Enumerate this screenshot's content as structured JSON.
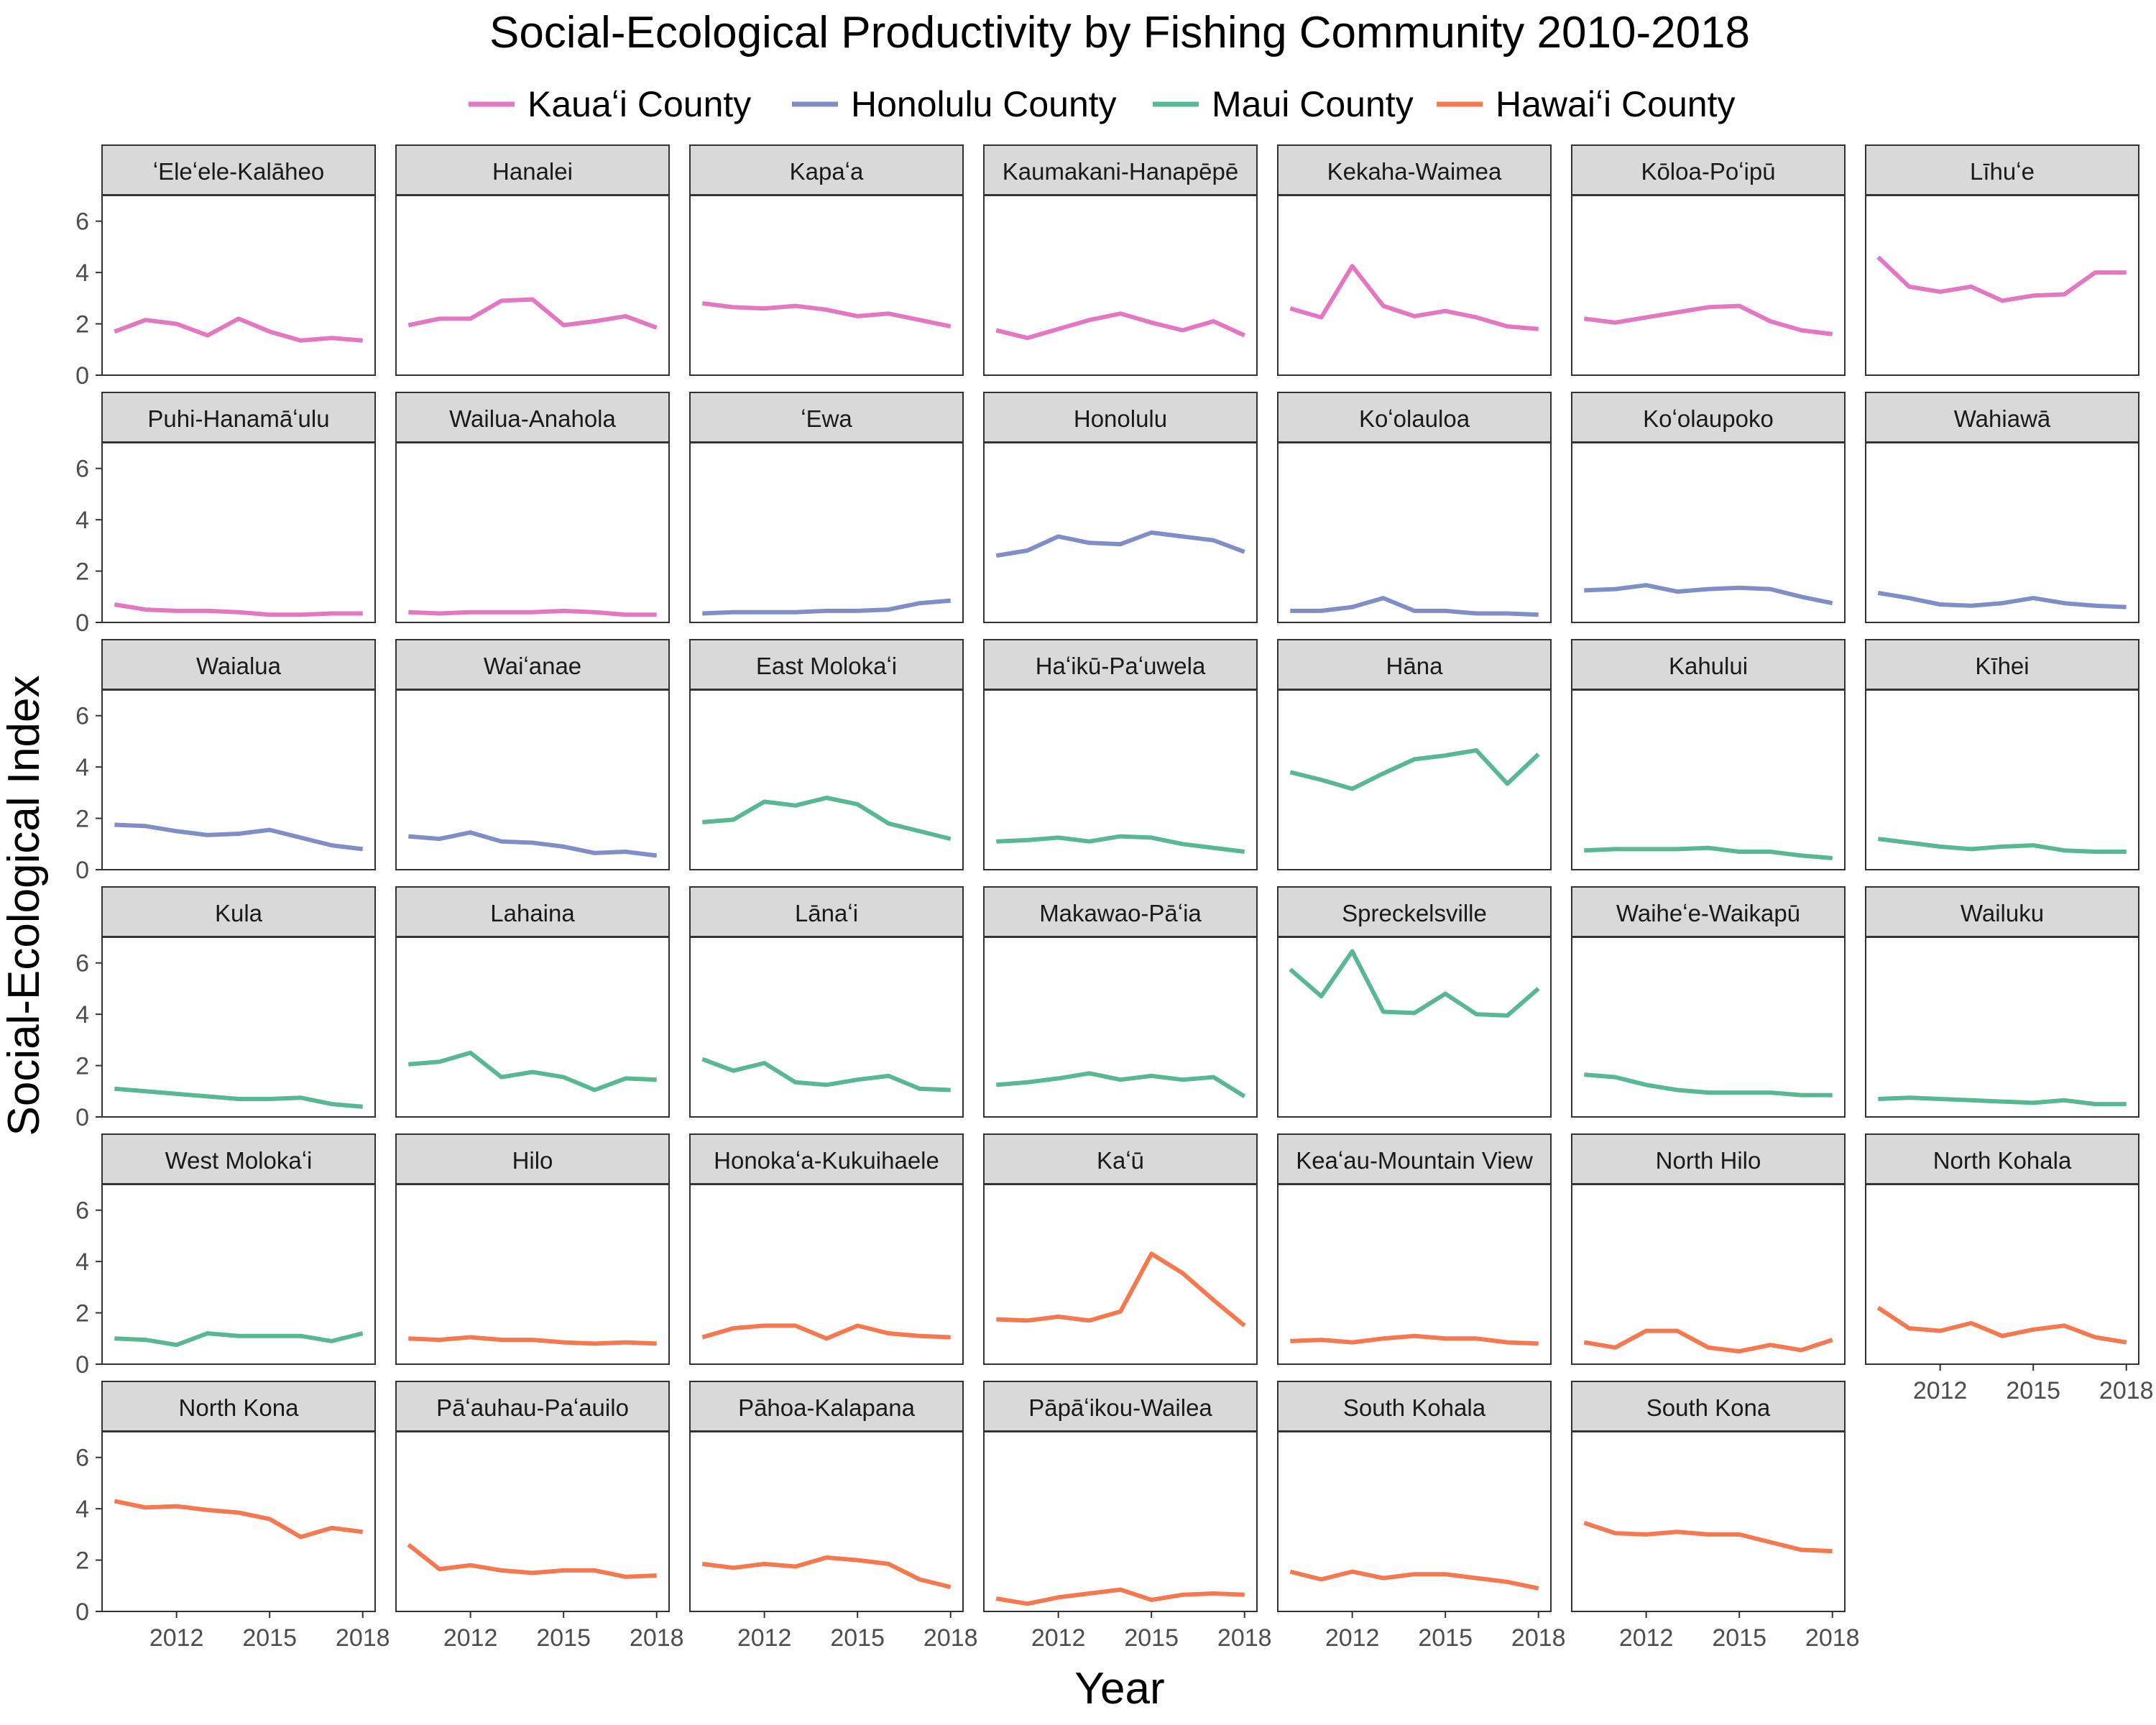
{
  "chart_data": {
    "type": "line",
    "title": "Social-Ecological Productivity by Fishing Community 2010-2018",
    "xlabel": "Year",
    "ylabel": "Social-Ecological Index",
    "x": [
      2010,
      2011,
      2012,
      2013,
      2014,
      2015,
      2016,
      2017,
      2018
    ],
    "xticks": [
      2012,
      2015,
      2018
    ],
    "ylim": [
      0,
      7
    ],
    "yticks": [
      0,
      2,
      4,
      6
    ],
    "legend": {
      "position": "top",
      "entries": [
        {
          "name": "Kauaʻi County",
          "color": "#E377C2"
        },
        {
          "name": "Honolulu County",
          "color": "#7F8EC7"
        },
        {
          "name": "Maui County",
          "color": "#59B894"
        },
        {
          "name": "Hawaiʻi County",
          "color": "#F5784F"
        }
      ]
    },
    "panels": [
      {
        "label": "ʻEleʻele-Kalāheo",
        "county": "Kauaʻi County",
        "values": [
          1.7,
          2.15,
          2.0,
          1.55,
          2.2,
          1.7,
          1.35,
          1.45,
          1.35
        ]
      },
      {
        "label": "Hanalei",
        "county": "Kauaʻi County",
        "values": [
          1.95,
          2.2,
          2.2,
          2.9,
          2.95,
          1.95,
          2.1,
          2.3,
          1.85
        ]
      },
      {
        "label": "Kapaʻa",
        "county": "Kauaʻi County",
        "values": [
          2.8,
          2.65,
          2.6,
          2.7,
          2.55,
          2.3,
          2.4,
          2.15,
          1.9
        ]
      },
      {
        "label": "Kaumakani-Hanapēpē",
        "county": "Kauaʻi County",
        "values": [
          1.75,
          1.45,
          1.8,
          2.15,
          2.4,
          2.05,
          1.75,
          2.1,
          1.55
        ]
      },
      {
        "label": "Kekaha-Waimea",
        "county": "Kauaʻi County",
        "values": [
          2.6,
          2.25,
          4.25,
          2.7,
          2.3,
          2.5,
          2.25,
          1.9,
          1.8
        ]
      },
      {
        "label": "Kōloa-Poʻipū",
        "county": "Kauaʻi County",
        "values": [
          2.2,
          2.05,
          2.25,
          2.45,
          2.65,
          2.7,
          2.1,
          1.75,
          1.6
        ]
      },
      {
        "label": "Līhuʻe",
        "county": "Kauaʻi County",
        "values": [
          4.6,
          3.45,
          3.25,
          3.45,
          2.9,
          3.1,
          3.15,
          4.0,
          4.0
        ]
      },
      {
        "label": "Puhi-Hanamāʻulu",
        "county": "Kauaʻi County",
        "values": [
          0.7,
          0.5,
          0.45,
          0.45,
          0.4,
          0.3,
          0.3,
          0.35,
          0.35
        ]
      },
      {
        "label": "Wailua-Anahola",
        "county": "Kauaʻi County",
        "values": [
          0.4,
          0.35,
          0.4,
          0.4,
          0.4,
          0.45,
          0.4,
          0.3,
          0.3
        ]
      },
      {
        "label": "ʻEwa",
        "county": "Honolulu County",
        "values": [
          0.35,
          0.4,
          0.4,
          0.4,
          0.45,
          0.45,
          0.5,
          0.75,
          0.85
        ]
      },
      {
        "label": "Honolulu",
        "county": "Honolulu County",
        "values": [
          2.6,
          2.8,
          3.35,
          3.1,
          3.05,
          3.5,
          3.35,
          3.2,
          2.75
        ]
      },
      {
        "label": "Koʻolauloa",
        "county": "Honolulu County",
        "values": [
          0.45,
          0.45,
          0.6,
          0.95,
          0.45,
          0.45,
          0.35,
          0.35,
          0.3
        ]
      },
      {
        "label": "Koʻolaupoko",
        "county": "Honolulu County",
        "values": [
          1.25,
          1.3,
          1.45,
          1.2,
          1.3,
          1.35,
          1.3,
          1.0,
          0.75
        ]
      },
      {
        "label": "Wahiawā",
        "county": "Honolulu County",
        "values": [
          1.15,
          0.95,
          0.7,
          0.65,
          0.75,
          0.95,
          0.75,
          0.65,
          0.6
        ]
      },
      {
        "label": "Waialua",
        "county": "Honolulu County",
        "values": [
          1.75,
          1.7,
          1.5,
          1.35,
          1.4,
          1.55,
          1.25,
          0.95,
          0.8
        ]
      },
      {
        "label": "Waiʻanae",
        "county": "Honolulu County",
        "values": [
          1.3,
          1.2,
          1.45,
          1.1,
          1.05,
          0.9,
          0.65,
          0.7,
          0.55
        ]
      },
      {
        "label": "East Molokaʻi",
        "county": "Maui County",
        "values": [
          1.85,
          1.95,
          2.65,
          2.5,
          2.8,
          2.55,
          1.8,
          1.5,
          1.2
        ]
      },
      {
        "label": "Haʻikū-Paʻuwela",
        "county": "Maui County",
        "values": [
          1.1,
          1.15,
          1.25,
          1.1,
          1.3,
          1.25,
          1.0,
          0.85,
          0.7
        ]
      },
      {
        "label": "Hāna",
        "county": "Maui County",
        "values": [
          3.8,
          3.5,
          3.15,
          3.75,
          4.3,
          4.45,
          4.65,
          3.35,
          4.5
        ]
      },
      {
        "label": "Kahului",
        "county": "Maui County",
        "values": [
          0.75,
          0.8,
          0.8,
          0.8,
          0.85,
          0.7,
          0.7,
          0.55,
          0.45
        ]
      },
      {
        "label": "Kīhei",
        "county": "Maui County",
        "values": [
          1.2,
          1.05,
          0.9,
          0.8,
          0.9,
          0.95,
          0.75,
          0.7,
          0.7
        ]
      },
      {
        "label": "Kula",
        "county": "Maui County",
        "values": [
          1.1,
          1.0,
          0.9,
          0.8,
          0.7,
          0.7,
          0.75,
          0.5,
          0.4
        ]
      },
      {
        "label": "Lahaina",
        "county": "Maui County",
        "values": [
          2.05,
          2.15,
          2.5,
          1.55,
          1.75,
          1.55,
          1.05,
          1.5,
          1.45
        ]
      },
      {
        "label": "Lānaʻi",
        "county": "Maui County",
        "values": [
          2.25,
          1.8,
          2.1,
          1.35,
          1.25,
          1.45,
          1.6,
          1.1,
          1.05
        ]
      },
      {
        "label": "Makawao-Pāʻia",
        "county": "Maui County",
        "values": [
          1.25,
          1.35,
          1.5,
          1.7,
          1.45,
          1.6,
          1.45,
          1.55,
          0.8
        ]
      },
      {
        "label": "Spreckelsville",
        "county": "Maui County",
        "values": [
          5.75,
          4.7,
          6.45,
          4.1,
          4.05,
          4.8,
          4.0,
          3.95,
          5.0
        ]
      },
      {
        "label": "Waiheʻe-Waikapū",
        "county": "Maui County",
        "values": [
          1.65,
          1.55,
          1.25,
          1.05,
          0.95,
          0.95,
          0.95,
          0.85,
          0.85
        ]
      },
      {
        "label": "Wailuku",
        "county": "Maui County",
        "values": [
          0.7,
          0.75,
          0.7,
          0.65,
          0.6,
          0.55,
          0.65,
          0.5,
          0.5
        ]
      },
      {
        "label": "West Molokaʻi",
        "county": "Maui County",
        "values": [
          1.0,
          0.95,
          0.75,
          1.2,
          1.1,
          1.1,
          1.1,
          0.9,
          1.2
        ]
      },
      {
        "label": "Hilo",
        "county": "Hawaiʻi County",
        "values": [
          1.0,
          0.95,
          1.05,
          0.95,
          0.95,
          0.85,
          0.8,
          0.85,
          0.8
        ]
      },
      {
        "label": "Honokaʻa-Kukuihaele",
        "county": "Hawaiʻi County",
        "values": [
          1.05,
          1.4,
          1.5,
          1.5,
          1.0,
          1.5,
          1.2,
          1.1,
          1.05
        ]
      },
      {
        "label": "Kaʻū",
        "county": "Hawaiʻi County",
        "values": [
          1.75,
          1.7,
          1.85,
          1.7,
          2.05,
          4.3,
          3.55,
          2.5,
          1.5
        ]
      },
      {
        "label": "Keaʻau-Mountain View",
        "county": "Hawaiʻi County",
        "values": [
          0.9,
          0.95,
          0.85,
          1.0,
          1.1,
          1.0,
          1.0,
          0.85,
          0.8
        ]
      },
      {
        "label": "North Hilo",
        "county": "Hawaiʻi County",
        "values": [
          0.85,
          0.65,
          1.3,
          1.3,
          0.65,
          0.5,
          0.75,
          0.55,
          0.95
        ]
      },
      {
        "label": "North Kohala",
        "county": "Hawaiʻi County",
        "values": [
          2.2,
          1.4,
          1.3,
          1.6,
          1.1,
          1.35,
          1.5,
          1.05,
          0.85
        ]
      },
      {
        "label": "North Kona",
        "county": "Hawaiʻi County",
        "values": [
          4.3,
          4.05,
          4.1,
          3.95,
          3.85,
          3.6,
          2.9,
          3.25,
          3.1
        ]
      },
      {
        "label": "Pāʻauhau-Paʻauilo",
        "county": "Hawaiʻi County",
        "values": [
          2.6,
          1.65,
          1.8,
          1.6,
          1.5,
          1.6,
          1.6,
          1.35,
          1.4
        ]
      },
      {
        "label": "Pāhoa-Kalapana",
        "county": "Hawaiʻi County",
        "values": [
          1.85,
          1.7,
          1.85,
          1.75,
          2.1,
          2.0,
          1.85,
          1.25,
          0.95
        ]
      },
      {
        "label": "Pāpāʻikou-Wailea",
        "county": "Hawaiʻi County",
        "values": [
          0.5,
          0.3,
          0.55,
          0.7,
          0.85,
          0.45,
          0.65,
          0.7,
          0.65
        ]
      },
      {
        "label": "South Kohala",
        "county": "Hawaiʻi County",
        "values": [
          1.55,
          1.25,
          1.55,
          1.3,
          1.45,
          1.45,
          1.3,
          1.15,
          0.9
        ]
      },
      {
        "label": "South Kona",
        "county": "Hawaiʻi County",
        "values": [
          3.45,
          3.05,
          3.0,
          3.1,
          3.0,
          3.0,
          2.7,
          2.4,
          2.35
        ]
      }
    ]
  }
}
